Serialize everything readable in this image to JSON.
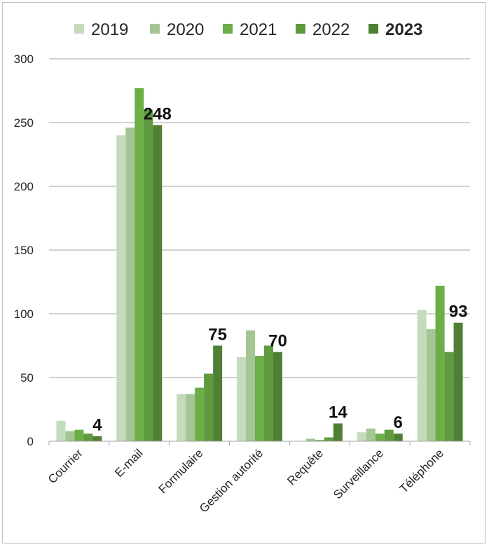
{
  "chart_data": {
    "type": "bar",
    "title": "",
    "xlabel": "",
    "ylabel": "",
    "ylim": [
      0,
      300
    ],
    "yticks": [
      0,
      50,
      100,
      150,
      200,
      250,
      300
    ],
    "grid": true,
    "legend_position": "top",
    "categories": [
      "Courrier",
      "E-mail",
      "Formulaire",
      "Gestion autorité",
      "Requête",
      "Surveillance",
      "Téléphone"
    ],
    "series": [
      {
        "name": "2019",
        "color": "#c4dcbb",
        "bold": false,
        "values": [
          16,
          240,
          37,
          66,
          0,
          7,
          103
        ]
      },
      {
        "name": "2020",
        "color": "#a4c594",
        "bold": false,
        "values": [
          8,
          246,
          37,
          87,
          2,
          10,
          88
        ]
      },
      {
        "name": "2021",
        "color": "#6cae47",
        "bold": false,
        "values": [
          9,
          277,
          42,
          67,
          1,
          6,
          122
        ]
      },
      {
        "name": "2022",
        "color": "#5f9a3f",
        "bold": false,
        "values": [
          6,
          260,
          53,
          75,
          3,
          9,
          70
        ]
      },
      {
        "name": "2023",
        "color": "#4e7f34",
        "bold": true,
        "values": [
          4,
          248,
          75,
          70,
          14,
          6,
          93
        ]
      }
    ],
    "data_labels": {
      "series": "2023",
      "values": [
        "4",
        "248",
        "75",
        "70",
        "14",
        "6",
        "93"
      ]
    }
  }
}
